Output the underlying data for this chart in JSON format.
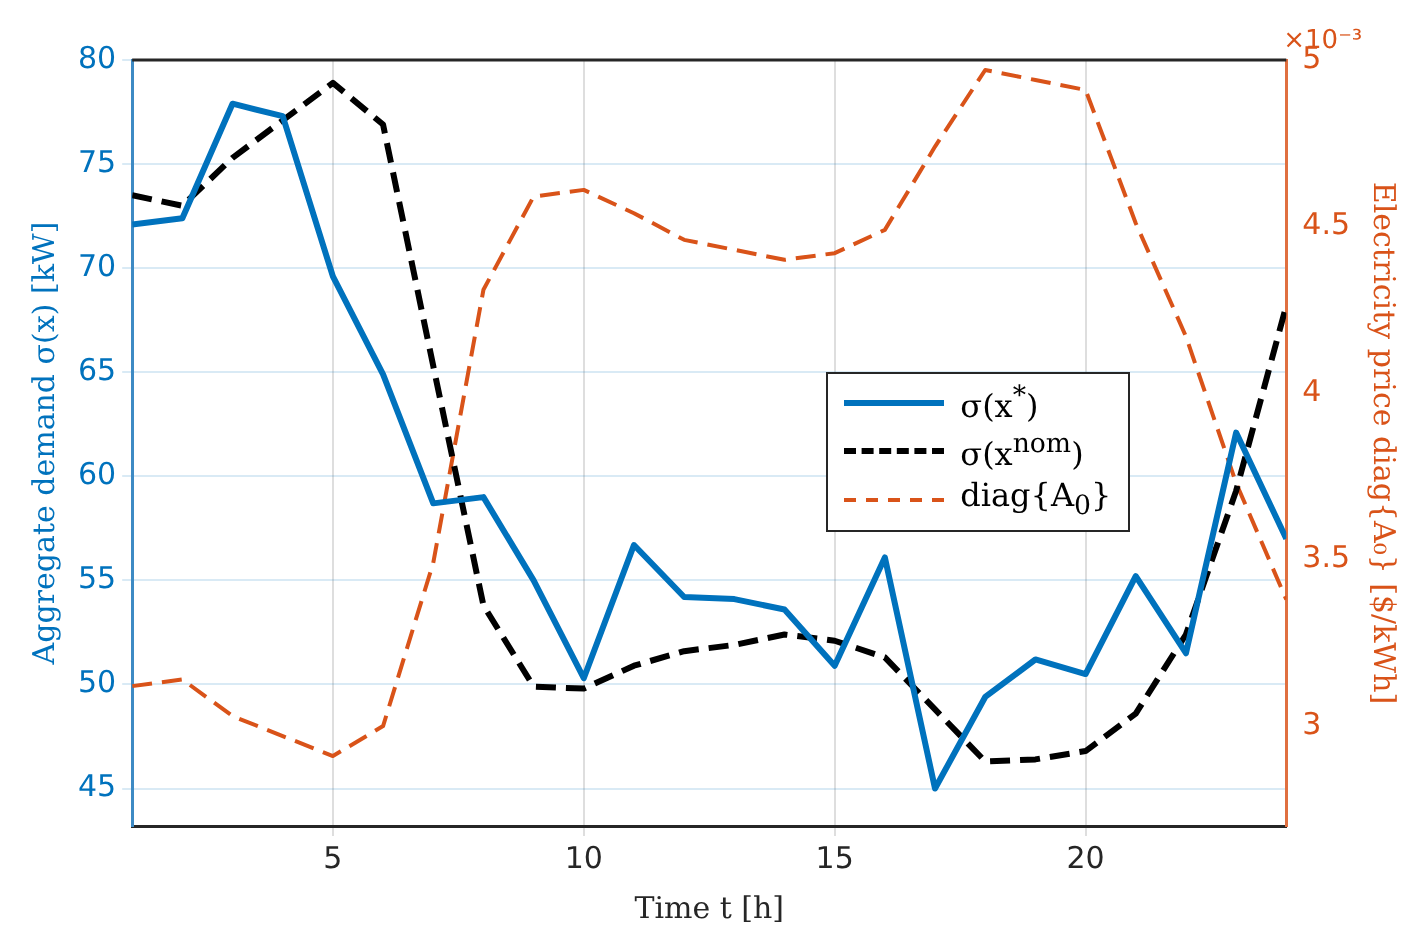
{
  "chart_data": {
    "type": "line",
    "xlabel": "Time t [h]",
    "ylabel": "Aggregate demand σ(x) [kW]",
    "y2label": "Electricity price diag{A₀} [$/kWh]",
    "x": [
      1,
      2,
      3,
      4,
      5,
      6,
      7,
      8,
      9,
      10,
      11,
      12,
      13,
      14,
      15,
      16,
      17,
      18,
      19,
      20,
      21,
      22,
      23,
      24
    ],
    "series": [
      {
        "name": "σ(x$^{*}$)",
        "color": "#0072bd",
        "line_style": "solid",
        "values": [
          72.1,
          72.4,
          77.9,
          77.3,
          69.6,
          64.9,
          58.7,
          59.0,
          55.0,
          50.3,
          56.7,
          54.2,
          54.1,
          53.6,
          50.9,
          56.1,
          45.0,
          49.4,
          51.2,
          50.5,
          55.2,
          51.5,
          62.1,
          57.0
        ]
      },
      {
        "name": "σ(x$^{nom}$)",
        "color": "#000000",
        "line_style": "dashed",
        "values": [
          73.5,
          73.0,
          75.3,
          77.1,
          78.9,
          76.9,
          65.3,
          53.8,
          49.9,
          49.8,
          50.9,
          51.6,
          51.9,
          52.4,
          52.1,
          51.3,
          48.8,
          46.3,
          46.4,
          46.8,
          48.6,
          52.4,
          59.3,
          68.2
        ]
      },
      {
        "name": "diag{A$_{0}$}",
        "color": "#d95319",
        "line_style": "dashed",
        "axis": "y2",
        "values": [
          3.12,
          3.14,
          3.03,
          2.97,
          2.91,
          3.0,
          3.49,
          4.31,
          4.59,
          4.61,
          4.54,
          4.46,
          4.43,
          4.4,
          4.42,
          4.49,
          4.74,
          4.97,
          4.94,
          4.91,
          4.51,
          4.17,
          3.73,
          3.38
        ]
      }
    ],
    "xlim": [
      1,
      24
    ],
    "xticks": [
      5,
      10,
      15,
      20
    ],
    "ylim": [
      43.2,
      80
    ],
    "yticks": [
      45,
      50,
      55,
      60,
      65,
      70,
      75,
      80
    ],
    "y2lim": [
      2.7,
      5
    ],
    "y2ticks": [
      3,
      3.5,
      4,
      4.5,
      5
    ],
    "annotations": [
      "×10⁻³"
    ],
    "grid": true,
    "legend": "right",
    "marker": "none"
  }
}
